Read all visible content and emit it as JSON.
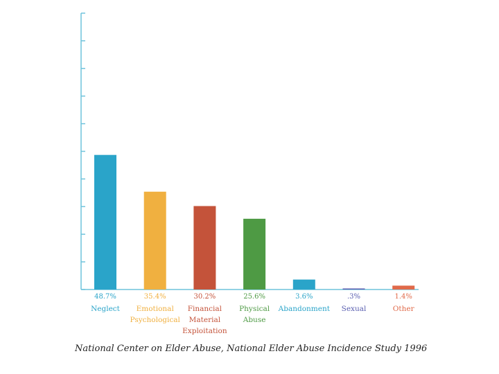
{
  "chart_data": {
    "type": "bar",
    "title": "",
    "xlabel": "",
    "ylabel": "",
    "ylim": [
      0,
      100
    ],
    "grid": false,
    "categories": [
      {
        "label": "Neglect",
        "value": 48.7,
        "value_label": "48.7%",
        "color": "#2aa4c9",
        "lines": [
          "Neglect"
        ]
      },
      {
        "label": "Emotional Psychological",
        "value": 35.4,
        "value_label": "35.4%",
        "color": "#f0b040",
        "lines": [
          "Emotional",
          "Psychological"
        ]
      },
      {
        "label": "Financial Material Exploitation",
        "value": 30.2,
        "value_label": "30.2%",
        "color": "#c4533a",
        "lines": [
          "Financial",
          "Material",
          "Exploitation"
        ]
      },
      {
        "label": "Physical Abuse",
        "value": 25.6,
        "value_label": "25.6%",
        "color": "#4e9a44",
        "lines": [
          "Physical",
          "Abuse"
        ]
      },
      {
        "label": "Abandonment",
        "value": 3.6,
        "value_label": "3.6%",
        "color": "#2aa4c9",
        "lines": [
          "Abandonment"
        ]
      },
      {
        "label": "Sexual",
        "value": 0.3,
        "value_label": ".3%",
        "color": "#5a5fb0",
        "lines": [
          "Sexual"
        ]
      },
      {
        "label": "Other",
        "value": 1.4,
        "value_label": "1.4%",
        "color": "#e06a4a",
        "lines": [
          "Other"
        ]
      }
    ]
  },
  "caption": "National Center on Elder Abuse, National Elder Abuse Incidence Study 1996",
  "colors": {
    "axis": "#6fc3dc"
  }
}
